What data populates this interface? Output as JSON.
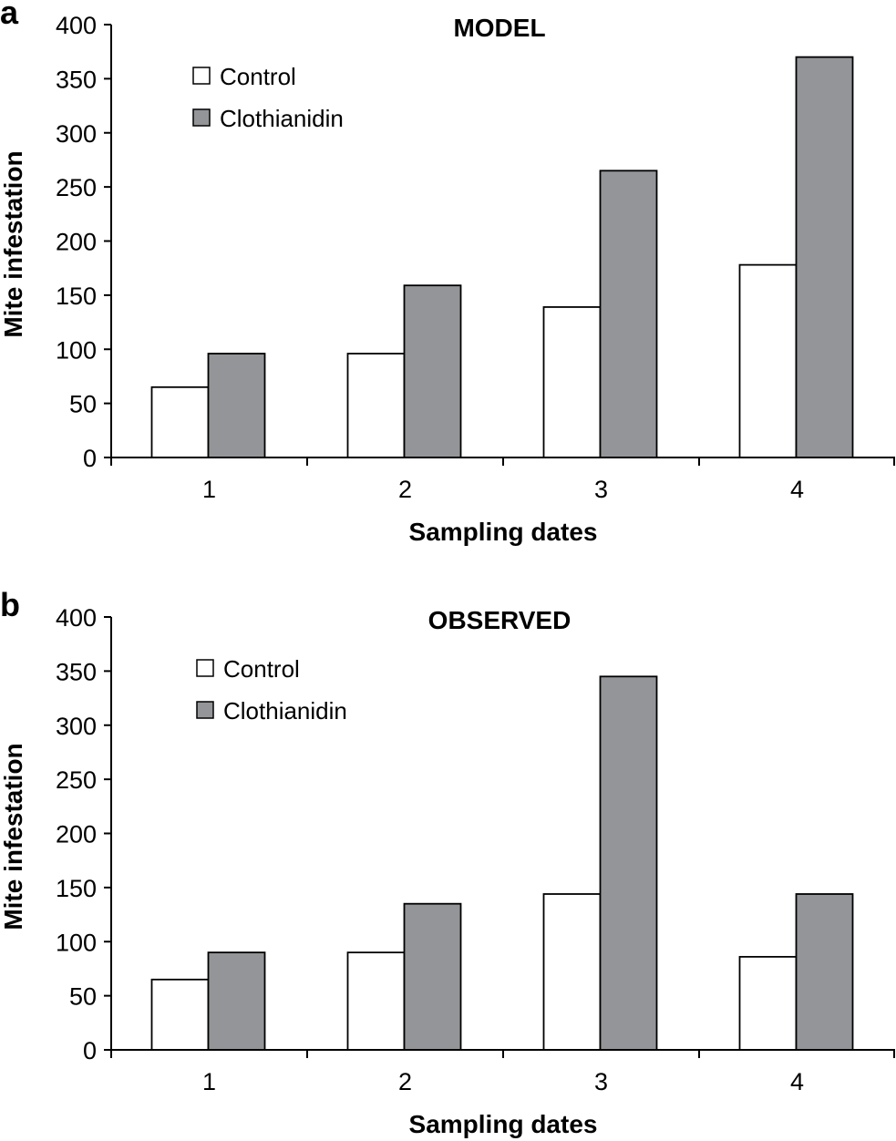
{
  "colors": {
    "control": "#ffffff",
    "clothianidin": "#939598",
    "stroke": "#000000"
  },
  "chart_data": [
    {
      "type": "bar",
      "panel_label": "a",
      "title": "MODEL",
      "categories": [
        "1",
        "2",
        "3",
        "4"
      ],
      "series": [
        {
          "name": "Control",
          "values": [
            65,
            96,
            139,
            178
          ]
        },
        {
          "name": "Clothianidin",
          "values": [
            96,
            159,
            265,
            370
          ]
        }
      ],
      "xlabel": "Sampling dates",
      "ylabel": "Mite infestation",
      "ylim": [
        0,
        400
      ],
      "yticks": [
        0,
        50,
        100,
        150,
        200,
        250,
        300,
        350,
        400
      ],
      "legend_position": "top-left"
    },
    {
      "type": "bar",
      "panel_label": "b",
      "title": "OBSERVED",
      "categories": [
        "1",
        "2",
        "3",
        "4"
      ],
      "series": [
        {
          "name": "Control",
          "values": [
            65,
            90,
            144,
            86
          ]
        },
        {
          "name": "Clothianidin",
          "values": [
            90,
            135,
            345,
            144
          ]
        }
      ],
      "xlabel": "Sampling dates",
      "ylabel": "Mite infestation",
      "ylim": [
        0,
        400
      ],
      "yticks": [
        0,
        50,
        100,
        150,
        200,
        250,
        300,
        350,
        400
      ],
      "legend_position": "top-left"
    }
  ]
}
